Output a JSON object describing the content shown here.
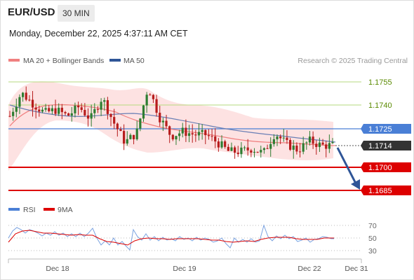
{
  "header": {
    "symbol": "EUR/USD",
    "timeframe": "30 MIN"
  },
  "datetime": "Monday, December 22, 2025 4:37:11 AM CET",
  "legend": {
    "ma20_label": "MA 20 + Bollinger Bands",
    "ma50_label": "MA 50",
    "copyright": "Research © 2025 Trading Central",
    "rsi_label": "RSI",
    "ma9_label": "9MA"
  },
  "colors": {
    "ma20": "#f08080",
    "ma50": "#2f5597",
    "bands_fill": "#fde2e2",
    "resistance": "#a9cf6b",
    "resistance_label": "#5a8a00",
    "pivot": "#4a7fd6",
    "support": "#dd0000",
    "current": "#333333",
    "candle_up": "#2e7d32",
    "candle_down": "#b71c1c",
    "rsi": "#4a7fd6",
    "rsi_ma": "#dd0000"
  },
  "levels": {
    "resistance_2": "1.1755",
    "resistance_1": "1.1740",
    "pivot": "1.1725",
    "current": "1.1714",
    "support_1": "1.1700",
    "support_2": "1.1685"
  },
  "rsi_axis": [
    "70",
    "50",
    "30"
  ],
  "x_axis": [
    "Dec 18",
    "Dec 19",
    "Dec 22",
    "Dec 31"
  ],
  "chart_data": {
    "type": "candlestick",
    "price_levels": [
      1.1755,
      1.174,
      1.1725,
      1.1714,
      1.17,
      1.1685
    ],
    "price_close_path": [
      1.1733,
      1.1748,
      1.1741,
      1.1735,
      1.1737,
      1.1733,
      1.1739,
      1.1731,
      1.1745,
      1.1729,
      1.1716,
      1.1722,
      1.1752,
      1.1732,
      1.172,
      1.1723,
      1.1721,
      1.1721,
      1.1716,
      1.171,
      1.171,
      1.1712,
      1.1709,
      1.1722,
      1.1715,
      1.1711,
      1.1717,
      1.1714,
      1.1714
    ],
    "rsi_levels": [
      70,
      50,
      30
    ],
    "x_labels": [
      "Dec 18",
      "Dec 19",
      "Dec 22",
      "Dec 31"
    ]
  }
}
